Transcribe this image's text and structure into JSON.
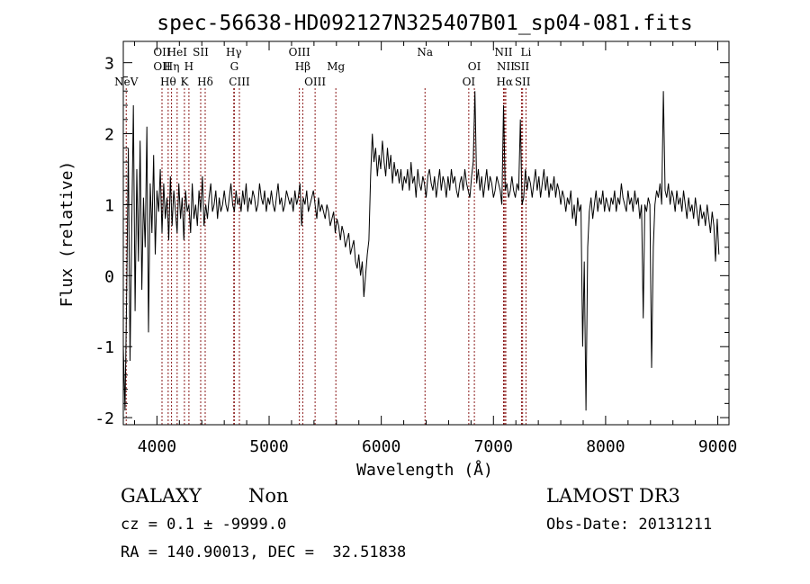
{
  "chart_data": {
    "type": "line",
    "title": "spec-56638-HD092127N325407B01_sp04-081.fits",
    "xlabel": "Wavelength (Å)",
    "ylabel": "Flux (relative)",
    "xlim": [
      3700,
      9100
    ],
    "ylim": [
      -2.1,
      3.3
    ],
    "x_ticks": [
      4000,
      5000,
      6000,
      7000,
      8000,
      9000
    ],
    "y_ticks": [
      -2,
      -1,
      0,
      1,
      2,
      3
    ],
    "grid": false,
    "line_color": "#000000",
    "marker_color": "#8b1a1a",
    "spectral_lines": [
      {
        "label": "NeV",
        "x": 3726,
        "row": 3
      },
      {
        "label": "OII",
        "x": 4045,
        "row": 1
      },
      {
        "label": "OII",
        "x": 4045,
        "row": 2
      },
      {
        "label": "Hθ",
        "x": 4100,
        "row": 3
      },
      {
        "label": "Hη",
        "x": 4130,
        "row": 2
      },
      {
        "label": "HeI",
        "x": 4180,
        "row": 1
      },
      {
        "label": "K",
        "x": 4245,
        "row": 3
      },
      {
        "label": "H",
        "x": 4285,
        "row": 2
      },
      {
        "label": "SII",
        "x": 4390,
        "row": 1
      },
      {
        "label": "Hδ",
        "x": 4430,
        "row": 3
      },
      {
        "label": "Hγ",
        "x": 4685,
        "row": 1
      },
      {
        "label": "G",
        "x": 4690,
        "row": 2
      },
      {
        "label": "CIII",
        "x": 4735,
        "row": 3
      },
      {
        "label": "OIII",
        "x": 5270,
        "row": 1
      },
      {
        "label": "Hβ",
        "x": 5300,
        "row": 2
      },
      {
        "label": "OIII",
        "x": 5410,
        "row": 3
      },
      {
        "label": "Mg",
        "x": 5595,
        "row": 2
      },
      {
        "label": "Na",
        "x": 6390,
        "row": 1
      },
      {
        "label": "OI",
        "x": 6830,
        "row": 2
      },
      {
        "label": "OI",
        "x": 6780,
        "row": 3
      },
      {
        "label": "NII",
        "x": 7090,
        "row": 1
      },
      {
        "label": "NII",
        "x": 7110,
        "row": 2
      },
      {
        "label": "Hα",
        "x": 7100,
        "row": 3
      },
      {
        "label": "Li",
        "x": 7290,
        "row": 1
      },
      {
        "label": "SII",
        "x": 7250,
        "row": 2
      },
      {
        "label": "SII",
        "x": 7260,
        "row": 3
      }
    ],
    "series": [
      {
        "x": [
          3700,
          3715,
          3730,
          3745,
          3760,
          3775,
          3790,
          3805,
          3820,
          3835,
          3850,
          3865,
          3880,
          3895,
          3910,
          3925,
          3940,
          3955,
          3970,
          3985,
          4000,
          4015,
          4030,
          4045,
          4060,
          4075,
          4090,
          4105,
          4120,
          4135,
          4150,
          4165,
          4180,
          4195,
          4210,
          4225,
          4240,
          4255,
          4270,
          4285,
          4300,
          4315,
          4330,
          4345,
          4360,
          4375,
          4390,
          4405,
          4420,
          4435,
          4450,
          4465,
          4480,
          4495,
          4510,
          4525,
          4540,
          4555,
          4570,
          4585,
          4600,
          4615,
          4630,
          4645,
          4660,
          4675,
          4690,
          4705,
          4720,
          4735,
          4750,
          4765,
          4780,
          4795,
          4810,
          4825,
          4840,
          4855,
          4870,
          4885,
          4900,
          4915,
          4930,
          4945,
          4960,
          4975,
          4990,
          5005,
          5020,
          5035,
          5050,
          5065,
          5080,
          5095,
          5110,
          5125,
          5140,
          5155,
          5170,
          5185,
          5200,
          5215,
          5230,
          5245,
          5260,
          5275,
          5290,
          5305,
          5320,
          5335,
          5350,
          5365,
          5380,
          5395,
          5410,
          5425,
          5440,
          5455,
          5470,
          5485,
          5500,
          5515,
          5530,
          5545,
          5560,
          5575,
          5590,
          5605,
          5620,
          5635,
          5650,
          5665,
          5680,
          5695,
          5710,
          5725,
          5740,
          5755,
          5770,
          5785,
          5800,
          5815,
          5830,
          5845,
          5860,
          5875,
          5890,
          5905,
          5920,
          5935,
          5950,
          5965,
          5980,
          5995,
          6010,
          6025,
          6040,
          6055,
          6070,
          6085,
          6100,
          6115,
          6130,
          6145,
          6160,
          6175,
          6190,
          6205,
          6220,
          6235,
          6250,
          6265,
          6280,
          6295,
          6310,
          6325,
          6340,
          6355,
          6370,
          6385,
          6400,
          6415,
          6430,
          6445,
          6460,
          6475,
          6490,
          6505,
          6520,
          6535,
          6550,
          6565,
          6580,
          6595,
          6610,
          6625,
          6640,
          6655,
          6670,
          6685,
          6700,
          6715,
          6730,
          6745,
          6760,
          6775,
          6790,
          6805,
          6820,
          6835,
          6850,
          6865,
          6880,
          6895,
          6910,
          6925,
          6940,
          6955,
          6970,
          6985,
          7000,
          7015,
          7030,
          7045,
          7060,
          7075,
          7090,
          7105,
          7120,
          7135,
          7150,
          7165,
          7180,
          7195,
          7210,
          7225,
          7240,
          7255,
          7270,
          7285,
          7300,
          7315,
          7330,
          7345,
          7360,
          7375,
          7390,
          7405,
          7420,
          7435,
          7450,
          7465,
          7480,
          7495,
          7510,
          7525,
          7540,
          7555,
          7570,
          7585,
          7600,
          7615,
          7630,
          7645,
          7660,
          7675,
          7690,
          7705,
          7720,
          7735,
          7750,
          7765,
          7780,
          7795,
          7810,
          7825,
          7840,
          7855,
          7870,
          7885,
          7900,
          7915,
          7930,
          7945,
          7960,
          7975,
          7990,
          8005,
          8020,
          8035,
          8050,
          8065,
          8080,
          8095,
          8110,
          8125,
          8140,
          8155,
          8170,
          8185,
          8200,
          8215,
          8230,
          8245,
          8260,
          8275,
          8290,
          8305,
          8320,
          8335,
          8350,
          8365,
          8380,
          8395,
          8410,
          8425,
          8440,
          8455,
          8470,
          8485,
          8500,
          8515,
          8530,
          8545,
          8560,
          8575,
          8590,
          8605,
          8620,
          8635,
          8650,
          8665,
          8680,
          8695,
          8710,
          8725,
          8740,
          8755,
          8770,
          8785,
          8800,
          8815,
          8830,
          8845,
          8860,
          8875,
          8890,
          8905,
          8920,
          8935,
          8950,
          8965,
          8980,
          8995,
          9010
        ],
        "y": [
          -1.0,
          -1.9,
          -0.3,
          1.8,
          -1.2,
          0.6,
          2.4,
          -0.5,
          1.5,
          0.2,
          1.9,
          -0.2,
          1.1,
          0.4,
          2.1,
          -0.8,
          1.3,
          0.6,
          1.7,
          0.3,
          1.2,
          0.9,
          1.5,
          0.6,
          1.3,
          0.8,
          1.1,
          0.5,
          1.4,
          0.7,
          1.2,
          0.9,
          0.6,
          1.3,
          0.8,
          1.1,
          0.5,
          1.2,
          0.9,
          1.0,
          0.6,
          1.3,
          0.8,
          1.0,
          0.7,
          1.2,
          0.9,
          1.4,
          0.7,
          1.0,
          0.8,
          1.1,
          1.3,
          0.9,
          1.0,
          1.2,
          0.8,
          1.1,
          0.9,
          1.0,
          1.2,
          1.0,
          0.9,
          1.1,
          1.3,
          1.0,
          0.9,
          1.2,
          1.0,
          1.1,
          0.9,
          1.2,
          1.0,
          1.3,
          0.9,
          1.1,
          1.0,
          1.2,
          1.1,
          0.9,
          1.0,
          1.3,
          1.1,
          1.0,
          1.2,
          0.9,
          1.1,
          1.0,
          1.2,
          1.0,
          0.9,
          1.1,
          1.3,
          1.0,
          1.1,
          0.9,
          1.0,
          1.2,
          1.1,
          1.0,
          1.1,
          0.9,
          1.2,
          1.0,
          1.1,
          1.3,
          0.7,
          1.1,
          1.0,
          1.2,
          0.9,
          1.0,
          1.1,
          1.2,
          1.0,
          0.8,
          1.1,
          0.9,
          1.0,
          0.9,
          0.8,
          1.0,
          0.9,
          0.7,
          0.8,
          0.9,
          0.6,
          0.8,
          0.7,
          0.5,
          0.7,
          0.6,
          0.4,
          0.5,
          0.6,
          0.3,
          0.4,
          0.5,
          0.2,
          0.1,
          0.3,
          0.0,
          0.2,
          -0.3,
          0.0,
          0.3,
          0.5,
          1.4,
          2.0,
          1.6,
          1.8,
          1.4,
          1.7,
          1.5,
          1.9,
          1.6,
          1.4,
          1.8,
          1.5,
          1.7,
          1.3,
          1.6,
          1.4,
          1.5,
          1.3,
          1.5,
          1.2,
          1.4,
          1.3,
          1.5,
          1.2,
          1.6,
          1.3,
          1.4,
          1.1,
          1.5,
          1.3,
          1.2,
          1.4,
          1.3,
          1.1,
          1.4,
          1.5,
          1.3,
          1.2,
          1.4,
          1.1,
          1.3,
          1.5,
          1.2,
          1.4,
          1.3,
          1.1,
          1.4,
          1.2,
          1.5,
          1.3,
          1.4,
          1.2,
          1.1,
          1.3,
          1.4,
          1.2,
          1.5,
          1.3,
          1.2,
          1.1,
          1.4,
          1.6,
          2.6,
          1.3,
          1.5,
          1.2,
          1.4,
          1.1,
          1.3,
          1.5,
          1.2,
          1.4,
          1.3,
          1.1,
          1.2,
          1.4,
          1.3,
          1.2,
          1.0,
          2.4,
          1.2,
          1.3,
          1.1,
          1.2,
          1.4,
          1.2,
          1.1,
          1.3,
          1.2,
          2.2,
          1.0,
          1.1,
          1.5,
          1.2,
          1.4,
          1.3,
          1.1,
          1.3,
          1.5,
          1.2,
          1.4,
          1.1,
          1.3,
          1.5,
          1.2,
          1.4,
          1.1,
          1.3,
          1.2,
          1.4,
          1.1,
          1.3,
          1.2,
          1.0,
          1.2,
          1.1,
          0.9,
          1.1,
          1.0,
          1.2,
          0.8,
          1.0,
          0.7,
          1.1,
          0.9,
          1.0,
          -1.0,
          0.2,
          -1.9,
          0.4,
          0.9,
          1.1,
          0.8,
          1.0,
          1.2,
          0.9,
          1.1,
          1.0,
          1.2,
          0.9,
          1.1,
          1.0,
          0.9,
          1.1,
          1.0,
          1.2,
          0.9,
          1.1,
          1.0,
          1.3,
          1.1,
          1.0,
          0.9,
          1.2,
          1.0,
          1.1,
          0.9,
          1.2,
          1.0,
          1.1,
          0.8,
          1.0,
          -0.6,
          1.0,
          0.9,
          1.1,
          1.0,
          -1.3,
          0.4,
          1.0,
          1.2,
          1.1,
          1.3,
          1.0,
          2.6,
          1.2,
          1.1,
          1.3,
          1.0,
          1.2,
          1.1,
          0.9,
          1.2,
          1.0,
          1.1,
          0.9,
          1.2,
          1.0,
          0.8,
          1.1,
          0.9,
          1.0,
          0.8,
          1.1,
          0.9,
          0.7,
          1.0,
          0.8,
          0.9,
          0.7,
          1.0,
          0.8,
          0.6,
          0.9,
          0.7,
          0.2,
          0.8,
          0.3
        ]
      }
    ]
  },
  "footer": {
    "object_class": "GALAXY",
    "subclass": "Non",
    "survey": "LAMOST DR3",
    "cz": "cz = 0.1 ± -9999.0",
    "obs_date": "Obs-Date: 20131211",
    "coords": "RA = 140.90013, DEC =  32.51838"
  }
}
